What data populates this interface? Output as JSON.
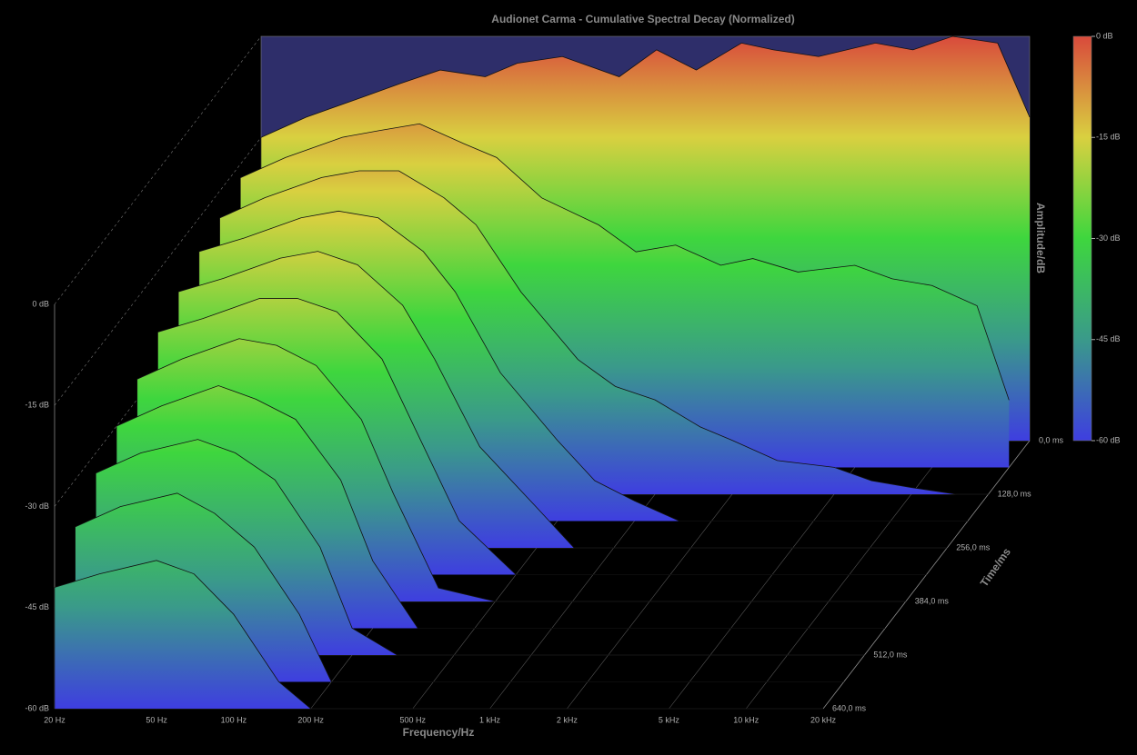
{
  "chart_data": {
    "type": "waterfall",
    "title": "Audionet Carma - Cumulative Spectral Decay (Normalized)",
    "x_label": "Frequency/Hz",
    "y_label": "Time/ms",
    "z_label": "Amplitude/dB",
    "log_x": true,
    "xlim": [
      20,
      20000
    ],
    "xticks": [
      {
        "value": 20,
        "label": "20 Hz"
      },
      {
        "value": 50,
        "label": "50 Hz"
      },
      {
        "value": 100,
        "label": "100 Hz"
      },
      {
        "value": 200,
        "label": "200 Hz"
      },
      {
        "value": 500,
        "label": "500 Hz"
      },
      {
        "value": 1000,
        "label": "1 kHz"
      },
      {
        "value": 2000,
        "label": "2 kHz"
      },
      {
        "value": 5000,
        "label": "5 kHz"
      },
      {
        "value": 10000,
        "label": "10 kHz"
      },
      {
        "value": 20000,
        "label": "20 kHz"
      }
    ],
    "ylim": [
      0,
      640
    ],
    "yticks": [
      {
        "value": 0,
        "label": "0,0 ms"
      },
      {
        "value": 128,
        "label": "128,0 ms"
      },
      {
        "value": 256,
        "label": "256,0 ms"
      },
      {
        "value": 384,
        "label": "384,0 ms"
      },
      {
        "value": 512,
        "label": "512,0 ms"
      },
      {
        "value": 640,
        "label": "640,0 ms"
      }
    ],
    "zlim": [
      -60,
      0
    ],
    "zticks": [
      {
        "value": 0,
        "label": "0 dB"
      },
      {
        "value": -15,
        "label": "-15 dB"
      },
      {
        "value": -30,
        "label": "-30 dB"
      },
      {
        "value": -45,
        "label": "-45 dB"
      },
      {
        "value": -60,
        "label": "-60 dB"
      }
    ],
    "colors": [
      "#d94a3c",
      "#d9d040",
      "#3ed63e",
      "#3a9a8a",
      "#3e3ee0"
    ],
    "x": [
      20,
      30,
      50,
      70,
      100,
      150,
      200,
      300,
      500,
      700,
      1000,
      1500,
      2000,
      3000,
      5000,
      7000,
      10000,
      15000,
      20000
    ],
    "series": [
      {
        "time": 0,
        "values": [
          -15,
          -12,
          -9,
          -7,
          -5,
          -6,
          -4,
          -3,
          -6,
          -2,
          -5,
          -1,
          -2,
          -3,
          -1,
          -2,
          0,
          -1,
          -12
        ]
      },
      {
        "time": 64,
        "values": [
          -17,
          -14,
          -11,
          -10,
          -9,
          -12,
          -14,
          -20,
          -24,
          -28,
          -27,
          -30,
          -29,
          -31,
          -30,
          -32,
          -33,
          -36,
          -50
        ]
      },
      {
        "time": 128,
        "values": [
          -19,
          -16,
          -13,
          -12,
          -12,
          -16,
          -20,
          -30,
          -40,
          -44,
          -46,
          -50,
          -52,
          -55,
          -56,
          -58,
          -59,
          -60,
          -60
        ]
      },
      {
        "time": 192,
        "values": [
          -20,
          -18,
          -15,
          -14,
          -15,
          -20,
          -26,
          -38,
          -48,
          -54,
          -57,
          -60,
          -60,
          -60,
          -60,
          -60,
          -60,
          -60,
          -60
        ]
      },
      {
        "time": 256,
        "values": [
          -22,
          -20,
          -17,
          -16,
          -18,
          -24,
          -32,
          -45,
          -54,
          -60,
          -60,
          -60,
          -60,
          -60,
          -60,
          -60,
          -60,
          -60,
          -60
        ]
      },
      {
        "time": 320,
        "values": [
          -24,
          -22,
          -19,
          -19,
          -21,
          -28,
          -38,
          -52,
          -60,
          -60,
          -60,
          -60,
          -60,
          -60,
          -60,
          -60,
          -60,
          -60,
          -60
        ]
      },
      {
        "time": 384,
        "values": [
          -27,
          -24,
          -21,
          -22,
          -25,
          -33,
          -44,
          -58,
          -60,
          -60,
          -60,
          -60,
          -60,
          -60,
          -60,
          -60,
          -60,
          -60,
          -60
        ]
      },
      {
        "time": 448,
        "values": [
          -30,
          -27,
          -24,
          -26,
          -29,
          -38,
          -50,
          -60,
          -60,
          -60,
          -60,
          -60,
          -60,
          -60,
          -60,
          -60,
          -60,
          -60,
          -60
        ]
      },
      {
        "time": 512,
        "values": [
          -33,
          -30,
          -28,
          -30,
          -34,
          -44,
          -56,
          -60,
          -60,
          -60,
          -60,
          -60,
          -60,
          -60,
          -60,
          -60,
          -60,
          -60,
          -60
        ]
      },
      {
        "time": 576,
        "values": [
          -37,
          -34,
          -32,
          -35,
          -40,
          -50,
          -60,
          -60,
          -60,
          -60,
          -60,
          -60,
          -60,
          -60,
          -60,
          -60,
          -60,
          -60,
          -60
        ]
      },
      {
        "time": 640,
        "values": [
          -42,
          -40,
          -38,
          -40,
          -46,
          -56,
          -60,
          -60,
          -60,
          -60,
          -60,
          -60,
          -60,
          -60,
          -60,
          -60,
          -60,
          -60,
          -60
        ]
      }
    ]
  }
}
